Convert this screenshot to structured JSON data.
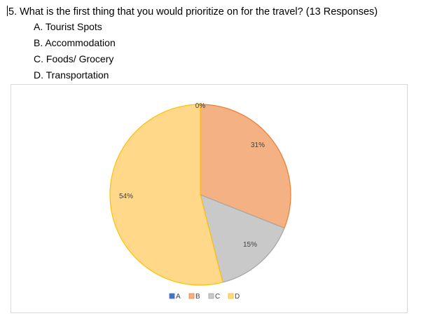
{
  "question": {
    "text": "5. What is the first thing that you would prioritize on for the travel? (13 Responses)"
  },
  "options": [
    "A. Tourist Spots",
    "B. Accommodation",
    "C. Foods/ Grocery",
    "D. Transportation"
  ],
  "chart_data": {
    "type": "pie",
    "title": "",
    "categories": [
      "A",
      "B",
      "C",
      "D"
    ],
    "values": [
      0,
      31,
      15,
      54
    ],
    "labels": [
      "0%",
      "31%",
      "15%",
      "54%"
    ],
    "colors": [
      "#4472c4",
      "#f4b183",
      "#c9c9c9",
      "#ffd88a"
    ],
    "edge_colors": [
      "#4472c4",
      "#ed7d31",
      "#a5a5a5",
      "#ffc000"
    ],
    "legend_position": "bottom"
  }
}
